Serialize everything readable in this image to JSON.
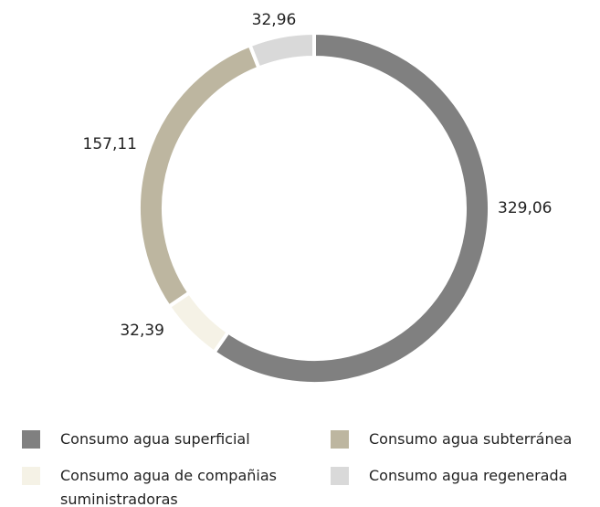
{
  "chart_data": {
    "type": "donut",
    "categories": [
      "Consumo agua superficial",
      "Consumo agua de compañias suministradoras",
      "Consumo agua subterránea",
      "Consumo agua regenerada"
    ],
    "values": [
      329.06,
      32.39,
      157.11,
      32.96
    ],
    "value_labels": [
      "329,06",
      "32,39",
      "157,11",
      "32,96"
    ],
    "colors": [
      "#808080",
      "#f5f2e6",
      "#bdb6a0",
      "#d9d9d9"
    ]
  }
}
